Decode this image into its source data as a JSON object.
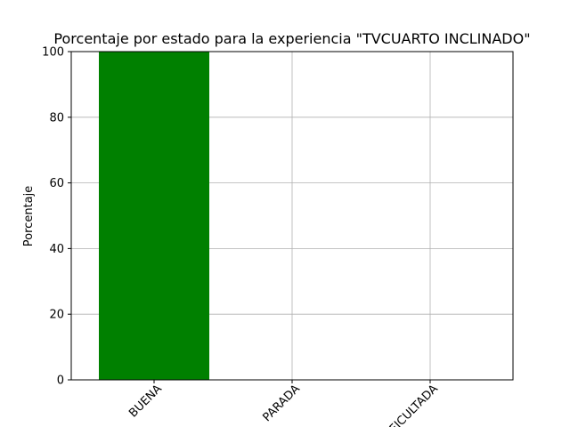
{
  "chart_data": {
    "type": "bar",
    "title": "Porcentaje por estado para la experiencia \"TVCUARTO INCLINADO\"",
    "xlabel": "",
    "ylabel": "Porcentaje",
    "categories": [
      "BUENA",
      "PARADA",
      "DIFICULTADA"
    ],
    "values": [
      100,
      0,
      0
    ],
    "ylim": [
      0,
      100
    ],
    "yticks": [
      "0",
      "20",
      "40",
      "60",
      "80",
      "100"
    ],
    "bar_color": "#008000",
    "grid": true,
    "xtick_rotation": 45
  }
}
